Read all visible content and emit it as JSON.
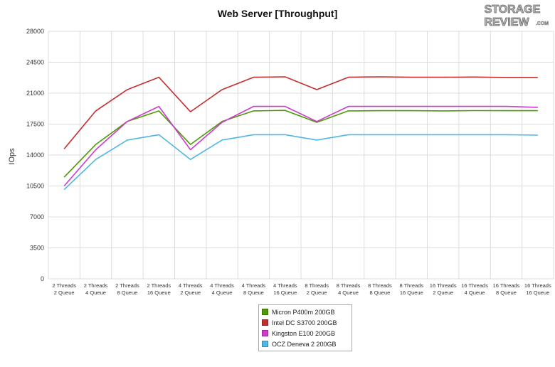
{
  "chart_data": {
    "type": "line",
    "title": "Web Server [Throughput]",
    "xlabel": "",
    "ylabel": "IOps",
    "ylim": [
      0,
      28000
    ],
    "yticks": [
      0,
      3500,
      7000,
      10500,
      14000,
      17500,
      21000,
      24500,
      28000
    ],
    "grid": true,
    "legend_position": "bottom",
    "categories": [
      [
        "2 Threads",
        "2 Queue"
      ],
      [
        "2 Threads",
        "4 Queue"
      ],
      [
        "2 Threads",
        "8 Queue"
      ],
      [
        "2 Threads",
        "16 Queue"
      ],
      [
        "4 Threads",
        "2 Queue"
      ],
      [
        "4 Threads",
        "4 Queue"
      ],
      [
        "4 Threads",
        "8 Queue"
      ],
      [
        "4 Threads",
        "16 Queue"
      ],
      [
        "8 Threads",
        "2 Queue"
      ],
      [
        "8 Threads",
        "4 Queue"
      ],
      [
        "8 Threads",
        "8 Queue"
      ],
      [
        "8 Threads",
        "16 Queue"
      ],
      [
        "16 Threads",
        "2 Queue"
      ],
      [
        "16 Threads",
        "4 Queue"
      ],
      [
        "16 Threads",
        "8 Queue"
      ],
      [
        "16 Threads",
        "16 Queue"
      ]
    ],
    "series": [
      {
        "name": "Micron P400m 200GB",
        "color": "#4e9a06",
        "values": [
          11500,
          15200,
          17800,
          19000,
          15200,
          17800,
          19000,
          19050,
          17700,
          19000,
          19020,
          19020,
          19000,
          19030,
          19020,
          19020
        ]
      },
      {
        "name": "Intel DC S3700 200GB",
        "color": "#c62d2d",
        "values": [
          14700,
          19000,
          21400,
          22800,
          18900,
          21400,
          22800,
          22850,
          21400,
          22800,
          22850,
          22800,
          22800,
          22830,
          22780,
          22780
        ]
      },
      {
        "name": "Kingston E100 200GB",
        "color": "#cc3ccc",
        "values": [
          10500,
          14600,
          17800,
          19500,
          14600,
          17700,
          19500,
          19500,
          17800,
          19500,
          19500,
          19500,
          19500,
          19500,
          19500,
          19400
        ]
      },
      {
        "name": "OCZ Deneva 2 200GB",
        "color": "#4fb7e6",
        "values": [
          10100,
          13500,
          15700,
          16300,
          13500,
          15700,
          16300,
          16300,
          15700,
          16300,
          16300,
          16300,
          16300,
          16300,
          16300,
          16250
        ]
      }
    ]
  },
  "logo": {
    "line1": "STORAGE",
    "line2": "REVIEW",
    "suffix": ".COM"
  }
}
